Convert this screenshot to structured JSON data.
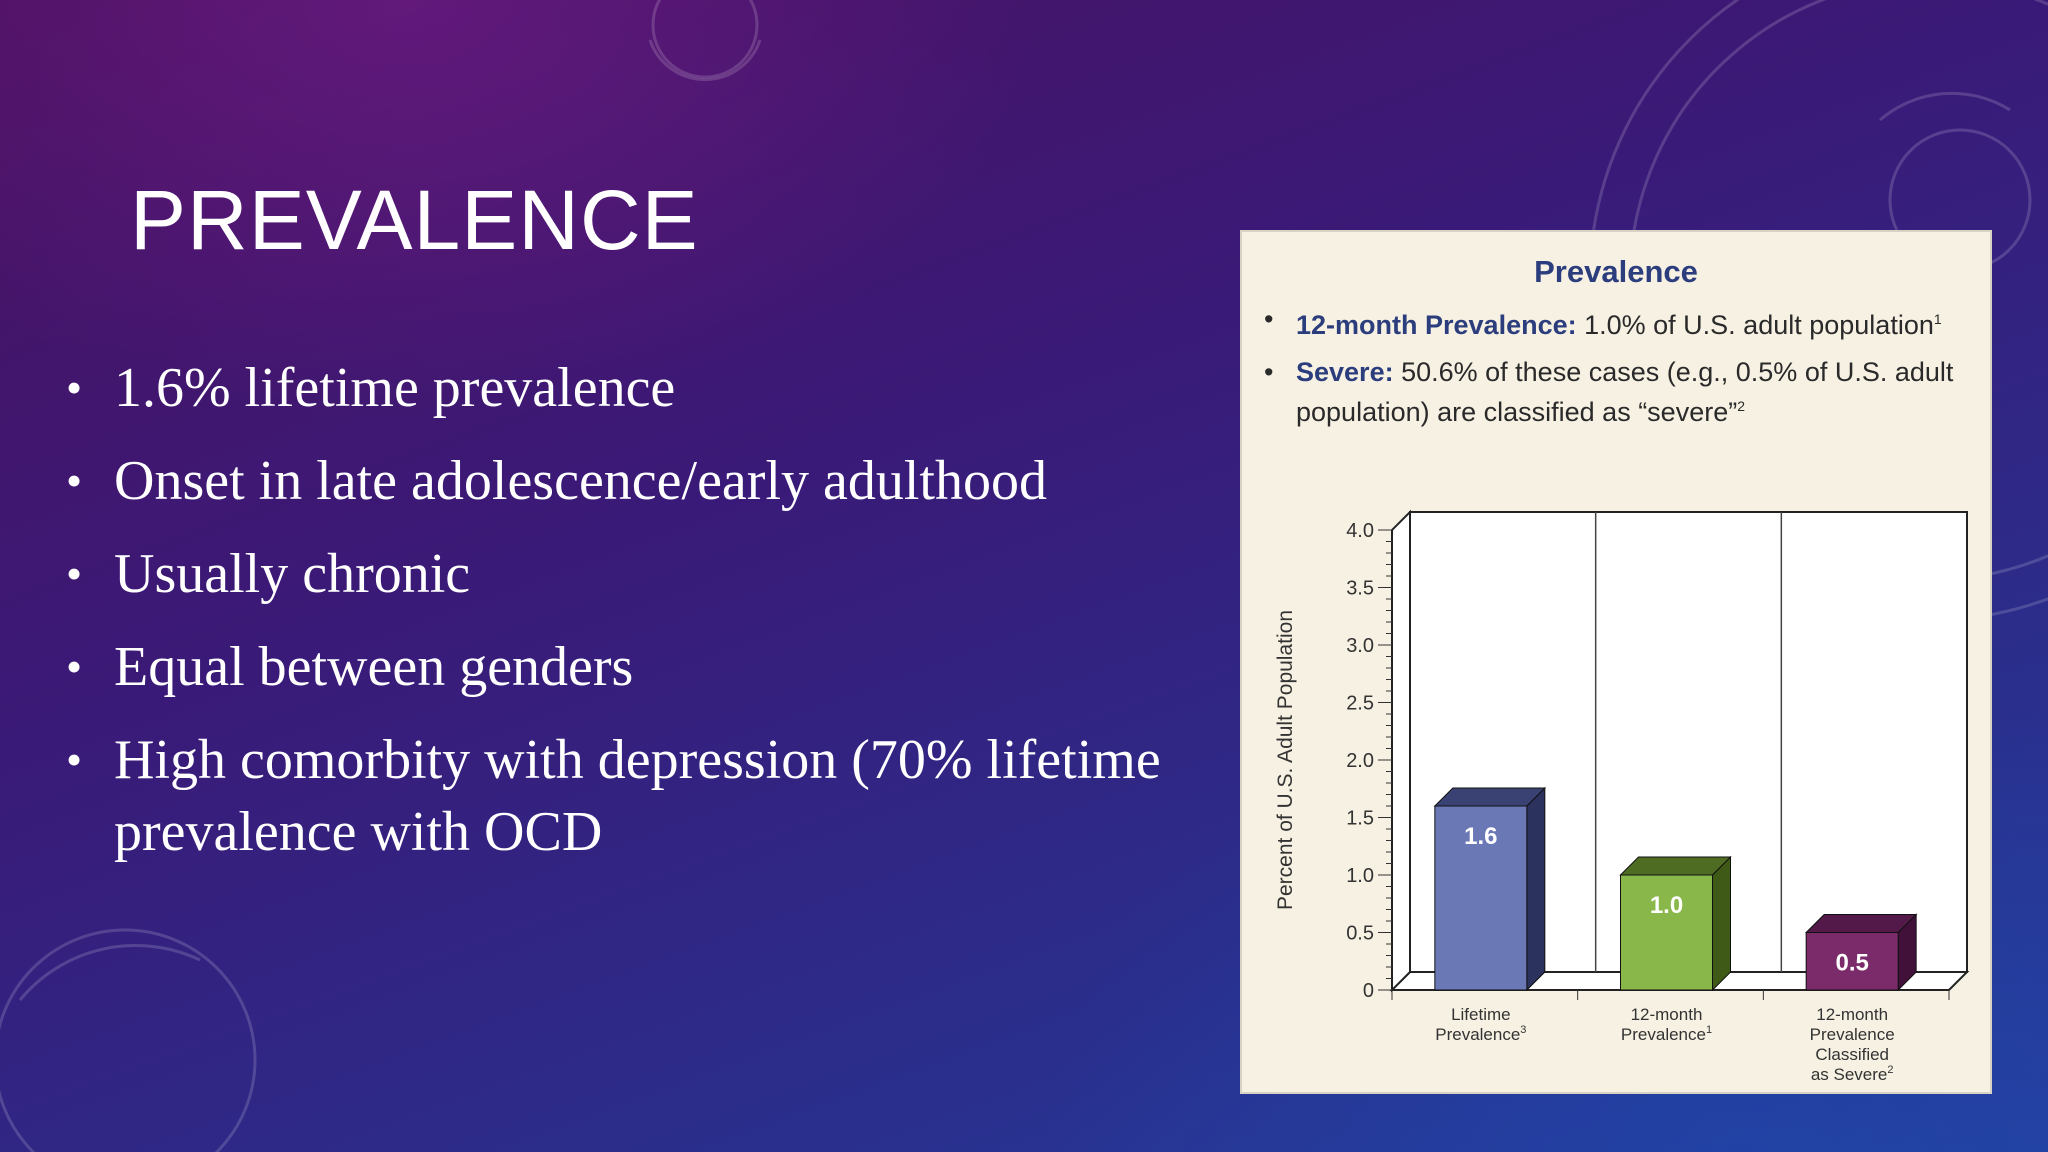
{
  "slide": {
    "title": "PREVALENCE",
    "bullets": [
      "1.6% lifetime prevalence",
      "Onset in late adolescence/early adulthood",
      "Usually chronic",
      "Equal between genders",
      "High comorbity with depression (70% lifetime prevalence with OCD"
    ]
  },
  "figure": {
    "title": "Prevalence",
    "bullets": [
      {
        "label": "12-month Prevalence:",
        "text": " 1.0% of U.S. adult population",
        "sup": "1"
      },
      {
        "label": "Severe:",
        "text": " 50.6% of these cases (e.g., 0.5% of U.S. adult population) are classified as “severe”",
        "sup": "2"
      }
    ]
  },
  "chart_data": {
    "type": "bar",
    "title": "",
    "ylabel": "Percent of U.S. Adult Population",
    "ylim": [
      0,
      4.0
    ],
    "yticks": [
      "0",
      "0.5",
      "1.0",
      "1.5",
      "2.0",
      "2.5",
      "3.0",
      "3.5",
      "4.0"
    ],
    "categories": [
      {
        "lines": [
          "Lifetime",
          "Prevalence"
        ],
        "sup": "3"
      },
      {
        "lines": [
          "12-month",
          "Prevalence"
        ],
        "sup": "1"
      },
      {
        "lines": [
          "12-month",
          "Prevalence",
          "Classified",
          "as Severe"
        ],
        "sup": "2"
      }
    ],
    "values": [
      1.6,
      1.0,
      0.5
    ],
    "value_labels": [
      "1.6",
      "1.0",
      "0.5"
    ],
    "colors": [
      {
        "front": "#6b78b6",
        "side": "#2c325e",
        "top": "#3a4273"
      },
      {
        "front": "#8ab74a",
        "side": "#3f5a16",
        "top": "#4f6d22"
      },
      {
        "front": "#7b2a6a",
        "side": "#42113a",
        "top": "#531a49"
      }
    ],
    "grid": false,
    "legend": "none"
  }
}
